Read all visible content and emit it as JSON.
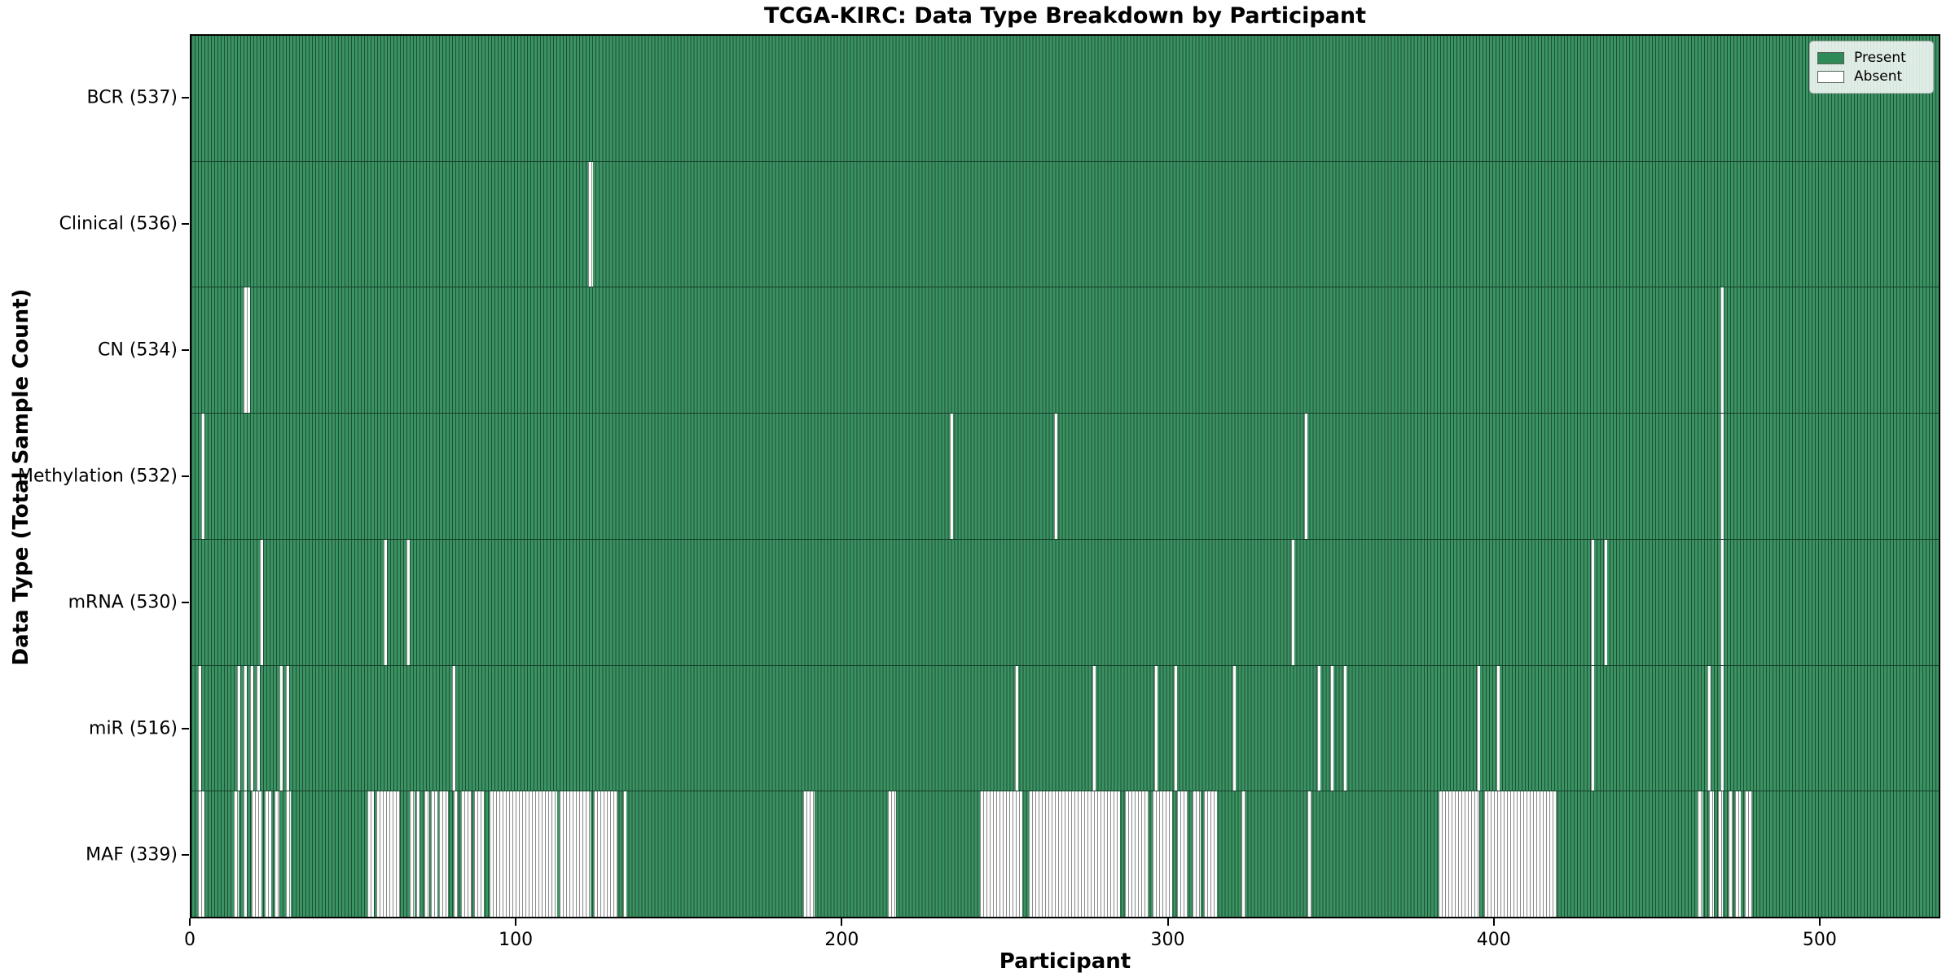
{
  "title": "TCGA-KIRC: Data Type Breakdown by Participant",
  "x_axis": {
    "label": "Participant",
    "ticks": [
      0,
      100,
      200,
      300,
      400,
      500
    ]
  },
  "y_axis": {
    "label": "Data Type (Total Sample Count)"
  },
  "legend": {
    "present_label": "Present",
    "absent_label": "Absent",
    "present_color": "#2e8b57",
    "absent_color": "#ffffff"
  },
  "colors": {
    "bar_fill": "#3b9263",
    "bar_edge": "#1d5034",
    "absent_fill": "#fdfdfd",
    "absent_edge": "#8a8a8a"
  },
  "chart_data": {
    "type": "heatmap",
    "title": "TCGA-KIRC: Data Type Breakdown by Participant",
    "xlabel": "Participant",
    "ylabel": "Data Type (Total Sample Count)",
    "x_range": [
      0,
      537
    ],
    "n_participants": 537,
    "legend_position": "upper right",
    "rows": [
      {
        "label": "BCR (537)",
        "data_type": "BCR",
        "count": 537,
        "absent_ranges": []
      },
      {
        "label": "Clinical (536)",
        "data_type": "Clinical",
        "count": 536,
        "absent_ranges": [
          [
            122,
            123.5
          ]
        ]
      },
      {
        "label": "CN (534)",
        "data_type": "CN",
        "count": 534,
        "absent_ranges": [
          [
            16,
            18
          ],
          [
            470,
            471
          ]
        ]
      },
      {
        "label": "Methylation (532)",
        "data_type": "Methylation",
        "count": 532,
        "absent_ranges": [
          [
            3,
            4
          ],
          [
            233,
            234
          ],
          [
            265,
            266
          ],
          [
            342,
            343
          ],
          [
            470,
            471
          ]
        ]
      },
      {
        "label": "mRNA (530)",
        "data_type": "mRNA",
        "count": 530,
        "absent_ranges": [
          [
            21,
            22
          ],
          [
            59,
            60
          ],
          [
            66,
            67
          ],
          [
            338,
            339
          ],
          [
            430,
            431
          ],
          [
            434,
            435
          ],
          [
            470,
            471
          ]
        ]
      },
      {
        "label": "miR (516)",
        "data_type": "miR",
        "count": 516,
        "absent_ranges": [
          [
            2,
            3
          ],
          [
            14,
            15
          ],
          [
            16,
            17
          ],
          [
            18,
            19
          ],
          [
            20,
            21
          ],
          [
            27,
            28
          ],
          [
            29,
            30
          ],
          [
            80,
            81
          ],
          [
            253,
            254
          ],
          [
            277,
            278
          ],
          [
            296,
            297
          ],
          [
            302,
            303
          ],
          [
            320,
            321
          ],
          [
            346,
            347
          ],
          [
            350,
            351
          ],
          [
            354,
            355
          ],
          [
            395,
            396
          ],
          [
            401,
            402
          ],
          [
            430,
            431
          ],
          [
            466,
            467
          ],
          [
            470,
            471
          ]
        ]
      },
      {
        "label": "MAF (339)",
        "data_type": "MAF",
        "count": 339,
        "absent_ranges": [
          [
            2,
            4
          ],
          [
            13,
            14.5
          ],
          [
            16,
            17
          ],
          [
            18.5,
            21.5
          ],
          [
            22.5,
            24.5
          ],
          [
            25.5,
            27
          ],
          [
            29,
            30.5
          ],
          [
            54,
            56
          ],
          [
            56.8,
            64
          ],
          [
            67,
            68.5
          ],
          [
            69.1,
            70.2
          ],
          [
            71.7,
            73
          ],
          [
            73.6,
            75.6
          ],
          [
            76.2,
            78.8
          ],
          [
            80.6,
            81.8
          ],
          [
            82.9,
            86.2
          ],
          [
            86.8,
            89.9
          ],
          [
            91.6,
            112.3
          ],
          [
            113.2,
            122.6
          ],
          [
            123.7,
            130.9
          ],
          [
            132.8,
            133.8
          ],
          [
            188,
            191.5
          ],
          [
            214,
            216.5
          ],
          [
            242.3,
            255.3
          ],
          [
            257.4,
            285.4
          ],
          [
            287,
            294.1
          ],
          [
            295.5,
            301.3
          ],
          [
            303,
            306.3
          ],
          [
            307.6,
            310.2
          ],
          [
            311.3,
            315.1
          ],
          [
            322.7,
            324
          ],
          [
            343,
            344.3
          ],
          [
            383.2,
            395.7
          ],
          [
            397.2,
            419.7
          ],
          [
            462.9,
            464.4
          ],
          [
            466.4,
            467.8
          ],
          [
            469.2,
            470.7
          ],
          [
            472.4,
            473.7
          ],
          [
            474.5,
            476.1
          ],
          [
            477.3,
            479.7
          ]
        ]
      }
    ]
  }
}
